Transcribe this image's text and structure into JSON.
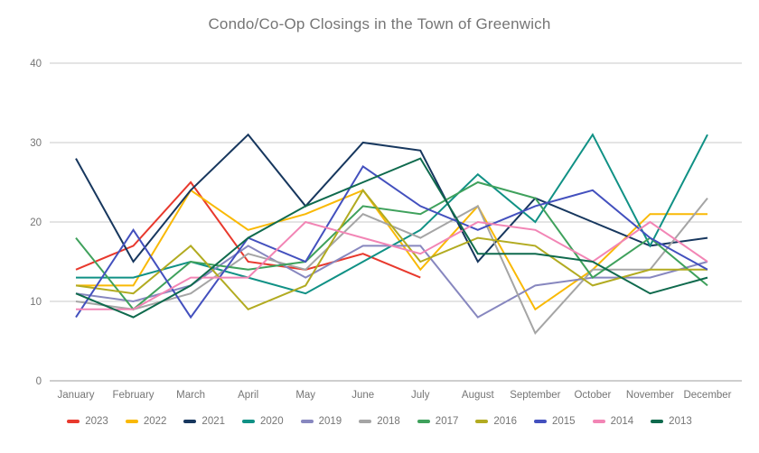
{
  "header": {
    "title": "Condo/Co-Op Closings in the Town of Greenwich"
  },
  "chart_data": {
    "type": "line",
    "title": "Condo/Co-Op Closings in the Town of Greenwich",
    "xlabel": "",
    "ylabel": "",
    "ylim": [
      0,
      40
    ],
    "yticks": [
      0,
      10,
      20,
      30,
      40
    ],
    "grid": true,
    "legend_position": "bottom",
    "categories": [
      "January",
      "February",
      "March",
      "April",
      "May",
      "June",
      "July",
      "August",
      "September",
      "October",
      "November",
      "December"
    ],
    "series": [
      {
        "name": "2023",
        "color": "#e8392d",
        "values": [
          14,
          17,
          25,
          15,
          14,
          16,
          13
        ]
      },
      {
        "name": "2022",
        "color": "#f9b905",
        "values": [
          12,
          12,
          24,
          19,
          21,
          24,
          14,
          22,
          9,
          14,
          21,
          21
        ]
      },
      {
        "name": "2021",
        "color": "#17375e",
        "values": [
          28,
          15,
          24,
          31,
          22,
          30,
          29,
          15,
          23,
          20,
          17,
          18
        ]
      },
      {
        "name": "2020",
        "color": "#109185",
        "values": [
          13,
          13,
          15,
          13,
          11,
          15,
          19,
          26,
          20,
          31,
          17,
          31
        ]
      },
      {
        "name": "2019",
        "color": "#8787bf",
        "values": [
          11,
          10,
          12,
          17,
          13,
          17,
          17,
          8,
          12,
          13,
          13,
          15
        ]
      },
      {
        "name": "2018",
        "color": "#a5a5a5",
        "values": [
          10,
          9,
          11,
          16,
          14,
          21,
          18,
          22,
          6,
          14,
          14,
          23
        ]
      },
      {
        "name": "2017",
        "color": "#3fa15c",
        "values": [
          18,
          9,
          15,
          14,
          15,
          22,
          21,
          25,
          23,
          13,
          18,
          12
        ]
      },
      {
        "name": "2016",
        "color": "#b2ab21",
        "values": [
          12,
          11,
          17,
          9,
          12,
          24,
          15,
          18,
          17,
          12,
          14,
          14
        ]
      },
      {
        "name": "2015",
        "color": "#4350be",
        "values": [
          8,
          19,
          8,
          18,
          15,
          27,
          22,
          19,
          22,
          24,
          18,
          14
        ]
      },
      {
        "name": "2014",
        "color": "#f285b5",
        "values": [
          9,
          9,
          13,
          13,
          20,
          18,
          16,
          20,
          19,
          15,
          20,
          15
        ]
      },
      {
        "name": "2013",
        "color": "#0f6a4d",
        "values": [
          11,
          8,
          12,
          18,
          22,
          25,
          28,
          16,
          16,
          15,
          11,
          13
        ]
      }
    ]
  }
}
